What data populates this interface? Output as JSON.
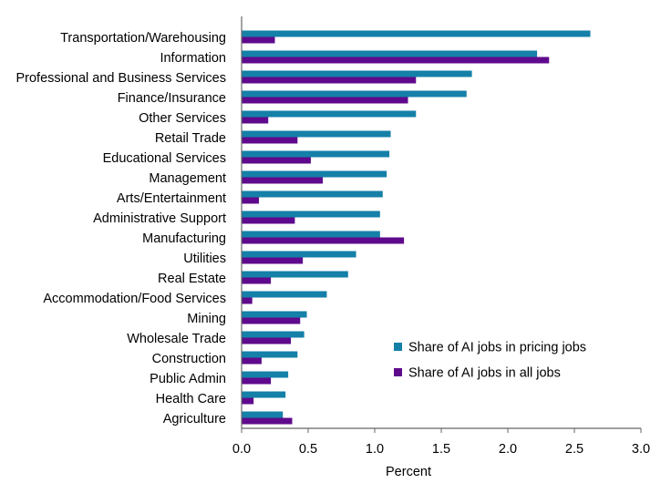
{
  "chart_data": {
    "type": "bar",
    "orientation": "horizontal",
    "categories": [
      "Transportation/Warehousing",
      "Information",
      "Professional and Business Services",
      "Finance/Insurance",
      "Other Services",
      "Retail Trade",
      "Educational Services",
      "Management",
      "Arts/Entertainment",
      "Administrative Support",
      "Manufacturing",
      "Utilities",
      "Real Estate",
      "Accommodation/Food Services",
      "Mining",
      "Wholesale Trade",
      "Construction",
      "Public Admin",
      "Health Care",
      "Agriculture"
    ],
    "series": [
      {
        "name": "Share of AI jobs in pricing jobs",
        "color": "#1580a8",
        "values": [
          2.62,
          2.22,
          1.73,
          1.69,
          1.31,
          1.12,
          1.11,
          1.09,
          1.06,
          1.04,
          1.04,
          0.86,
          0.8,
          0.64,
          0.49,
          0.47,
          0.42,
          0.35,
          0.33,
          0.31
        ]
      },
      {
        "name": "Share of AI jobs in all jobs",
        "color": "#5f0a8c",
        "values": [
          0.25,
          2.31,
          1.31,
          1.25,
          0.2,
          0.42,
          0.52,
          0.61,
          0.13,
          0.4,
          1.22,
          0.46,
          0.22,
          0.08,
          0.44,
          0.37,
          0.15,
          0.22,
          0.09,
          0.38
        ]
      }
    ],
    "xlabel": "Percent",
    "xlim": [
      0,
      3.0
    ],
    "xticks": [
      "0.0",
      "0.5",
      "1.0",
      "1.5",
      "2.0",
      "2.5",
      "3.0"
    ],
    "grid": false,
    "legend": "lower-right"
  }
}
